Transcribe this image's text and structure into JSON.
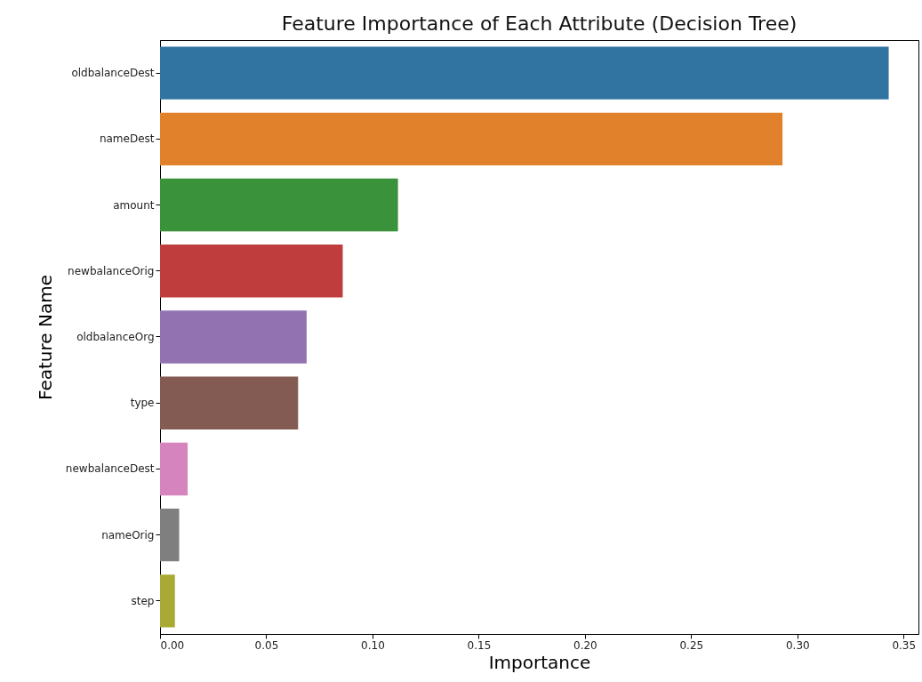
{
  "chart_data": {
    "type": "bar",
    "orientation": "horizontal",
    "title": "Feature Importance of Each Attribute (Decision Tree)",
    "xlabel": "Importance",
    "ylabel": "Feature Name",
    "categories": [
      "oldbalanceDest",
      "nameDest",
      "amount",
      "newbalanceOrig",
      "oldbalanceOrg",
      "type",
      "newbalanceDest",
      "nameOrig",
      "step"
    ],
    "values": [
      0.343,
      0.293,
      0.112,
      0.086,
      0.069,
      0.065,
      0.013,
      0.009,
      0.007
    ],
    "colors": [
      "#3274a1",
      "#e1812c",
      "#3a923a",
      "#c03d3e",
      "#9372b2",
      "#845b53",
      "#d684bd",
      "#7f7f7f",
      "#a9aa35"
    ],
    "xlim": [
      0,
      0.357
    ],
    "xticks": [
      {
        "value": 0,
        "label": "0.00"
      },
      {
        "value": 0.05,
        "label": "0.05"
      },
      {
        "value": 0.1,
        "label": "0.10"
      },
      {
        "value": 0.15,
        "label": "0.15"
      },
      {
        "value": 0.2,
        "label": "0.20"
      },
      {
        "value": 0.25,
        "label": "0.25"
      },
      {
        "value": 0.3,
        "label": "0.30"
      },
      {
        "value": 0.35,
        "label": "0.35"
      }
    ],
    "grid": false
  }
}
